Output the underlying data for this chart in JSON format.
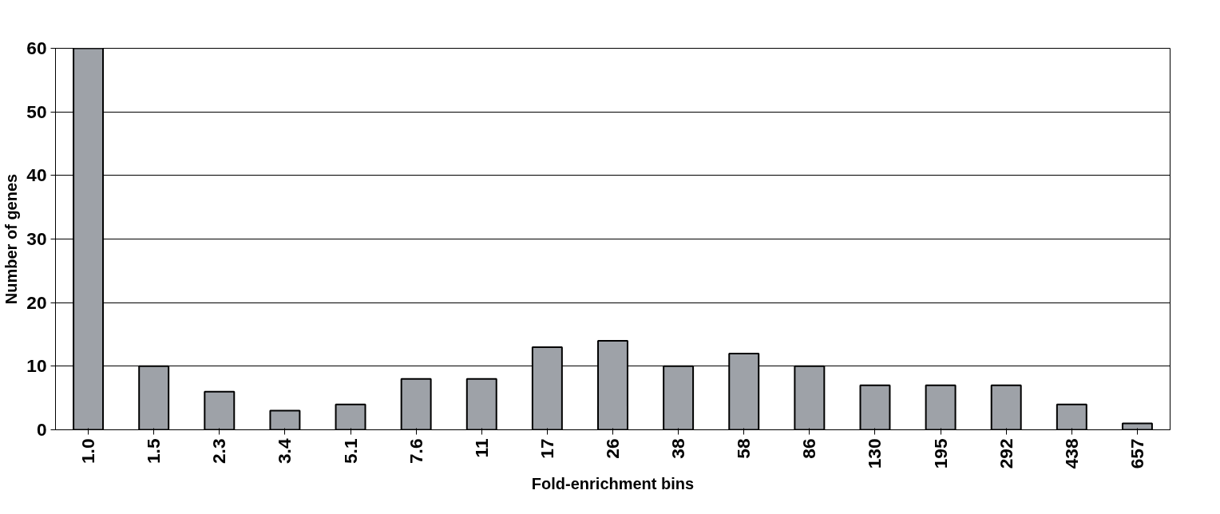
{
  "chart_data": {
    "type": "bar",
    "xlabel": "Fold-enrichment bins",
    "ylabel": "Number of genes",
    "categories": [
      "1.0",
      "1.5",
      "2.3",
      "3.4",
      "5.1",
      "7.6",
      "11",
      "17",
      "26",
      "38",
      "58",
      "86",
      "130",
      "195",
      "292",
      "438",
      "657"
    ],
    "values": [
      60,
      10,
      6,
      3,
      4,
      8,
      8,
      13,
      14,
      10,
      12,
      10,
      7,
      7,
      7,
      4,
      1
    ],
    "color": "#9ea2a8",
    "ylim": [
      0,
      60
    ],
    "yticks": [
      0,
      10,
      20,
      30,
      40,
      50,
      60
    ],
    "grid": "y"
  }
}
